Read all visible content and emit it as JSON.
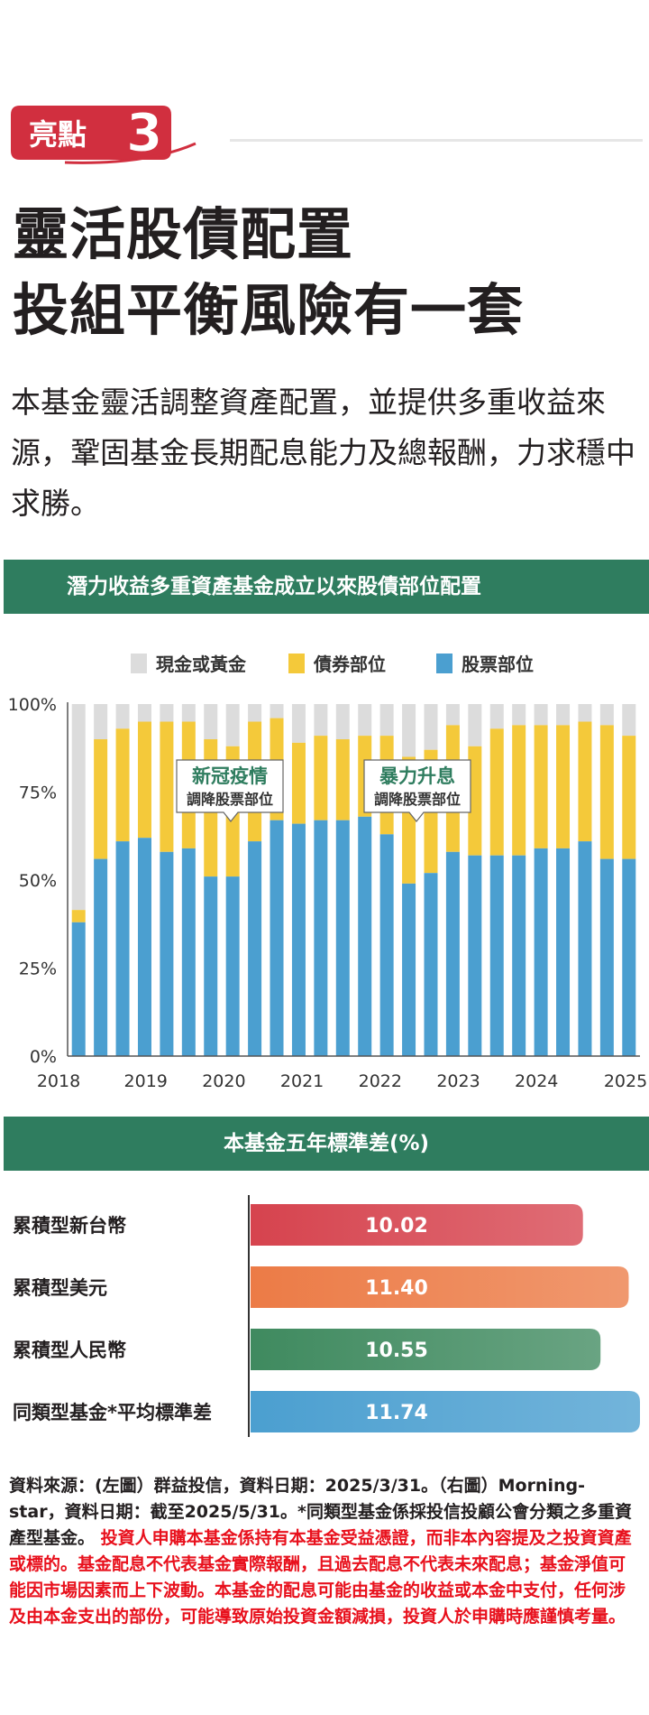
{
  "highlight": {
    "label": "亮點",
    "number": "3"
  },
  "headline": {
    "line1": "靈活股債配置",
    "line2": "投組平衡風險有一套"
  },
  "intro": "本基金靈活調整資產配置，並提供多重收益來源，鞏固基金長期配息能力及總報酬，力求穩中求勝。",
  "colors": {
    "brand_red": "#d12f3f",
    "band_green": "#2f7d5f",
    "cash": "#dcdcdc",
    "bond": "#f4c93a",
    "equity": "#4b9fd0"
  },
  "chart_data": [
    {
      "type": "bar",
      "stacked": true,
      "title": "潛力收益多重資產基金成立以來股債部位配置",
      "legend": [
        "現金或黃金",
        "債券部位",
        "股票部位"
      ],
      "legend_position": "top",
      "y_ticks": [
        "0%",
        "25%",
        "50%",
        "75%",
        "100%"
      ],
      "x_ticks": [
        "2018",
        "2019",
        "2020",
        "2021",
        "2022",
        "2023",
        "2024",
        "2025"
      ],
      "ylim": [
        0,
        100
      ],
      "grid": false,
      "series": [
        {
          "name": "股票部位",
          "values": [
            38,
            56,
            61,
            62,
            58,
            59,
            51,
            51,
            61,
            67,
            66,
            67,
            67,
            68,
            63,
            49,
            52,
            58,
            57,
            57,
            57,
            59,
            59,
            61,
            56,
            56
          ]
        },
        {
          "name": "債券部位",
          "values": [
            3.5,
            34,
            32,
            33,
            37,
            36,
            39,
            37,
            34,
            29,
            23,
            24,
            23,
            23,
            28,
            36,
            35,
            36,
            31,
            36,
            37,
            35,
            35,
            34,
            38,
            35
          ]
        }
      ],
      "annotations": [
        {
          "title": "新冠疫情",
          "subtitle": "調降股票部位"
        },
        {
          "title": "暴力升息",
          "subtitle": "調降股票部位"
        }
      ]
    },
    {
      "type": "bar",
      "orientation": "horizontal",
      "title": "本基金五年標準差(%)",
      "categories": [
        "累積型新台幣",
        "累積型美元",
        "累積型人民幣",
        "同類型基金*平均標準差"
      ],
      "values": [
        10.02,
        11.4,
        10.55,
        11.74
      ],
      "value_labels": [
        "10.02",
        "11.40",
        "10.55",
        "11.74"
      ],
      "bar_colors": [
        "#d6434e",
        "#ec7b46",
        "#3f8a5f",
        "#4b9fd0"
      ]
    }
  ],
  "footnote": {
    "black": "資料來源：(左圖）群益投信，資料日期：2025/3/31。（右圖）Morning-star，資料日期：截至2025/5/31。*同類型基金係採投信投顧公會分類之多重資產型基金。",
    "red": "投資人申購本基金係持有本基金受益憑證，而非本內容提及之投資資產或標的。基金配息不代表基金實際報酬，且過去配息不代表未來配息；基金淨值可能因市場因素而上下波動。本基金的配息可能由基金的收益或本金中支付，任何涉及由本金支出的部份，可能導致原始投資金額減損，投資人於申購時應謹慎考量。"
  }
}
